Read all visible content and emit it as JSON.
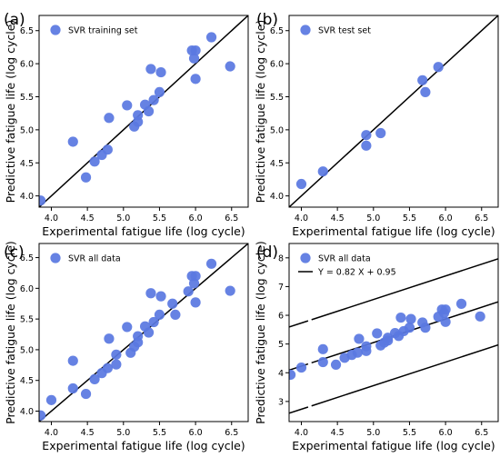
{
  "figure": {
    "background": "#ffffff"
  },
  "chart_data": [
    {
      "panel_label": "(a)",
      "type": "scatter",
      "xlabel": "Experimental fatigue life (log cycle)",
      "ylabel": "Predictive fatigue life (log cycle)",
      "xlim": [
        3.83,
        6.73
      ],
      "ylim": [
        3.83,
        6.73
      ],
      "x_ticks": [
        "4.0",
        "4.5",
        "5.0",
        "5.5",
        "6.0",
        "6.5"
      ],
      "y_ticks": [
        "4.0",
        "4.5",
        "5.0",
        "5.5",
        "6.0",
        "6.5"
      ],
      "x_tick_values": [
        4.0,
        4.5,
        5.0,
        5.5,
        6.0,
        6.5
      ],
      "y_tick_values": [
        4.0,
        4.5,
        5.0,
        5.5,
        6.0,
        6.5
      ],
      "grid": false,
      "legend_position": "top-left",
      "marker_color": "#5a78e1",
      "series": [
        {
          "name": "SVR training set",
          "points": [
            [
              3.85,
              3.93
            ],
            [
              4.3,
              4.82
            ],
            [
              4.48,
              4.28
            ],
            [
              4.6,
              4.52
            ],
            [
              4.7,
              4.62
            ],
            [
              4.78,
              4.7
            ],
            [
              4.8,
              5.18
            ],
            [
              5.05,
              5.37
            ],
            [
              5.15,
              5.05
            ],
            [
              5.2,
              5.12
            ],
            [
              5.2,
              5.22
            ],
            [
              5.3,
              5.38
            ],
            [
              5.35,
              5.28
            ],
            [
              5.38,
              5.92
            ],
            [
              5.42,
              5.45
            ],
            [
              5.5,
              5.57
            ],
            [
              5.52,
              5.87
            ],
            [
              5.95,
              6.2
            ],
            [
              5.98,
              6.08
            ],
            [
              6.0,
              6.2
            ],
            [
              6.0,
              5.77
            ],
            [
              6.22,
              6.4
            ],
            [
              6.48,
              5.96
            ]
          ]
        }
      ],
      "lines": [
        {
          "slope": 1.0,
          "intercept": 0.0
        }
      ]
    },
    {
      "panel_label": "(b)",
      "type": "scatter",
      "xlabel": "Experimental fatigue life (log cycle)",
      "ylabel": "Predictive fatigue life (log cycle)",
      "xlim": [
        3.83,
        6.73
      ],
      "ylim": [
        3.83,
        6.73
      ],
      "x_ticks": [
        "4.0",
        "4.5",
        "5.0",
        "5.5",
        "6.0",
        "6.5"
      ],
      "y_ticks": [
        "4.0",
        "4.5",
        "5.0",
        "5.5",
        "6.0",
        "6.5"
      ],
      "x_tick_values": [
        4.0,
        4.5,
        5.0,
        5.5,
        6.0,
        6.5
      ],
      "y_tick_values": [
        4.0,
        4.5,
        5.0,
        5.5,
        6.0,
        6.5
      ],
      "grid": false,
      "legend_position": "top-left",
      "marker_color": "#5a78e1",
      "series": [
        {
          "name": "SVR test set",
          "points": [
            [
              4.0,
              4.18
            ],
            [
              4.3,
              4.37
            ],
            [
              4.9,
              4.92
            ],
            [
              4.9,
              4.76
            ],
            [
              5.1,
              4.95
            ],
            [
              5.68,
              5.75
            ],
            [
              5.72,
              5.57
            ],
            [
              5.9,
              5.95
            ]
          ]
        }
      ],
      "lines": [
        {
          "slope": 1.0,
          "intercept": 0.0
        }
      ]
    },
    {
      "panel_label": "(c)",
      "type": "scatter",
      "xlabel": "Experimental fatigue life (log cycle)",
      "ylabel": "Predictive fatigue life (log cycle)",
      "xlim": [
        3.83,
        6.73
      ],
      "ylim": [
        3.83,
        6.73
      ],
      "x_ticks": [
        "4.0",
        "4.5",
        "5.0",
        "5.5",
        "6.0",
        "6.5"
      ],
      "y_ticks": [
        "4.0",
        "4.5",
        "5.0",
        "5.5",
        "6.0",
        "6.5"
      ],
      "x_tick_values": [
        4.0,
        4.5,
        5.0,
        5.5,
        6.0,
        6.5
      ],
      "y_tick_values": [
        4.0,
        4.5,
        5.0,
        5.5,
        6.0,
        6.5
      ],
      "grid": false,
      "legend_position": "top-left",
      "marker_color": "#5a78e1",
      "series": [
        {
          "name": "SVR all data",
          "points": [
            [
              3.85,
              3.93
            ],
            [
              4.0,
              4.18
            ],
            [
              4.3,
              4.37
            ],
            [
              4.3,
              4.82
            ],
            [
              4.48,
              4.28
            ],
            [
              4.6,
              4.52
            ],
            [
              4.7,
              4.62
            ],
            [
              4.78,
              4.7
            ],
            [
              4.8,
              5.18
            ],
            [
              4.9,
              4.92
            ],
            [
              4.9,
              4.76
            ],
            [
              5.05,
              5.37
            ],
            [
              5.1,
              4.95
            ],
            [
              5.15,
              5.05
            ],
            [
              5.2,
              5.12
            ],
            [
              5.2,
              5.22
            ],
            [
              5.3,
              5.38
            ],
            [
              5.35,
              5.28
            ],
            [
              5.38,
              5.92
            ],
            [
              5.42,
              5.45
            ],
            [
              5.5,
              5.57
            ],
            [
              5.52,
              5.87
            ],
            [
              5.68,
              5.75
            ],
            [
              5.72,
              5.57
            ],
            [
              5.9,
              5.95
            ],
            [
              5.95,
              6.2
            ],
            [
              5.98,
              6.08
            ],
            [
              6.0,
              6.2
            ],
            [
              6.0,
              5.77
            ],
            [
              6.22,
              6.4
            ],
            [
              6.48,
              5.96
            ]
          ]
        }
      ],
      "lines": [
        {
          "slope": 1.0,
          "intercept": 0.0
        }
      ]
    },
    {
      "panel_label": "(d)",
      "type": "scatter",
      "xlabel": "Experimental fatigue life (log cycle)",
      "ylabel": "Predictive fatigue life (log cycle)",
      "xlim": [
        3.83,
        6.73
      ],
      "ylim": [
        2.3,
        8.5
      ],
      "x_ticks": [
        "4.0",
        "4.5",
        "5.0",
        "5.5",
        "6.0",
        "6.5"
      ],
      "y_ticks": [
        "3",
        "4",
        "5",
        "6",
        "7",
        "8"
      ],
      "x_tick_values": [
        4.0,
        4.5,
        5.0,
        5.5,
        6.0,
        6.5
      ],
      "y_tick_values": [
        3,
        4,
        5,
        6,
        7,
        8
      ],
      "grid": false,
      "legend_position": "top-left",
      "marker_color": "#5a78e1",
      "series": [
        {
          "name": "SVR all data",
          "points": [
            [
              3.85,
              3.93
            ],
            [
              4.0,
              4.18
            ],
            [
              4.3,
              4.37
            ],
            [
              4.3,
              4.82
            ],
            [
              4.48,
              4.28
            ],
            [
              4.6,
              4.52
            ],
            [
              4.7,
              4.62
            ],
            [
              4.78,
              4.7
            ],
            [
              4.8,
              5.18
            ],
            [
              4.9,
              4.92
            ],
            [
              4.9,
              4.76
            ],
            [
              5.05,
              5.37
            ],
            [
              5.1,
              4.95
            ],
            [
              5.15,
              5.05
            ],
            [
              5.2,
              5.12
            ],
            [
              5.2,
              5.22
            ],
            [
              5.3,
              5.38
            ],
            [
              5.35,
              5.28
            ],
            [
              5.38,
              5.92
            ],
            [
              5.42,
              5.45
            ],
            [
              5.5,
              5.57
            ],
            [
              5.52,
              5.87
            ],
            [
              5.68,
              5.75
            ],
            [
              5.72,
              5.57
            ],
            [
              5.9,
              5.95
            ],
            [
              5.95,
              6.2
            ],
            [
              5.98,
              6.08
            ],
            [
              6.0,
              6.2
            ],
            [
              6.0,
              5.77
            ],
            [
              6.22,
              6.4
            ],
            [
              6.48,
              5.96
            ]
          ]
        }
      ],
      "lines": [
        {
          "slope": 0.82,
          "intercept": 0.95,
          "name": "Y = 0.82 X + 0.95",
          "dashed_gap_near_start": true
        },
        {
          "slope": 0.82,
          "intercept": 2.45,
          "dashed_gap_near_start": true
        },
        {
          "slope": 0.82,
          "intercept": -0.55,
          "dashed_gap_near_start": true
        }
      ]
    }
  ]
}
